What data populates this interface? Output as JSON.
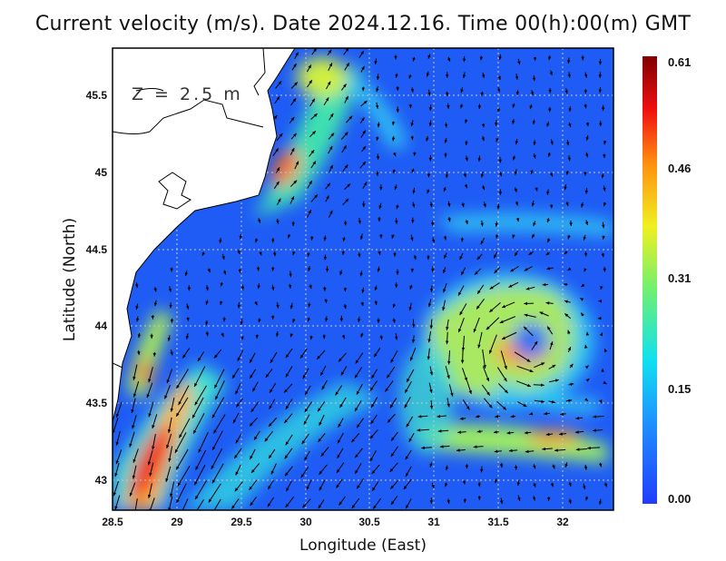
{
  "title": "Current velocity (m/s). Date 2024.12.16. Time 00(h):00(m) GMT",
  "depth_label": "Z = 2.5 m",
  "map": {
    "xlabel": "Longitude (East)",
    "ylabel": "Latitude (North)",
    "lon_range": [
      28.5,
      32.4
    ],
    "lat_range": [
      42.8,
      45.8
    ],
    "x_ticks": [
      "28.5",
      "29",
      "29.5",
      "30",
      "30.5",
      "31",
      "31.5",
      "32"
    ],
    "y_ticks": [
      "43",
      "43.5",
      "44",
      "44.5",
      "45",
      "45.5"
    ],
    "grid": true,
    "land_color": "#ffffff",
    "ocean_low_color": "#1f5cf5"
  },
  "colorbar": {
    "ticks": [
      "0.61",
      "0.46",
      "0.31",
      "0.15",
      "0.00"
    ],
    "range": [
      0.0,
      0.61
    ],
    "colormap": "jet"
  }
}
